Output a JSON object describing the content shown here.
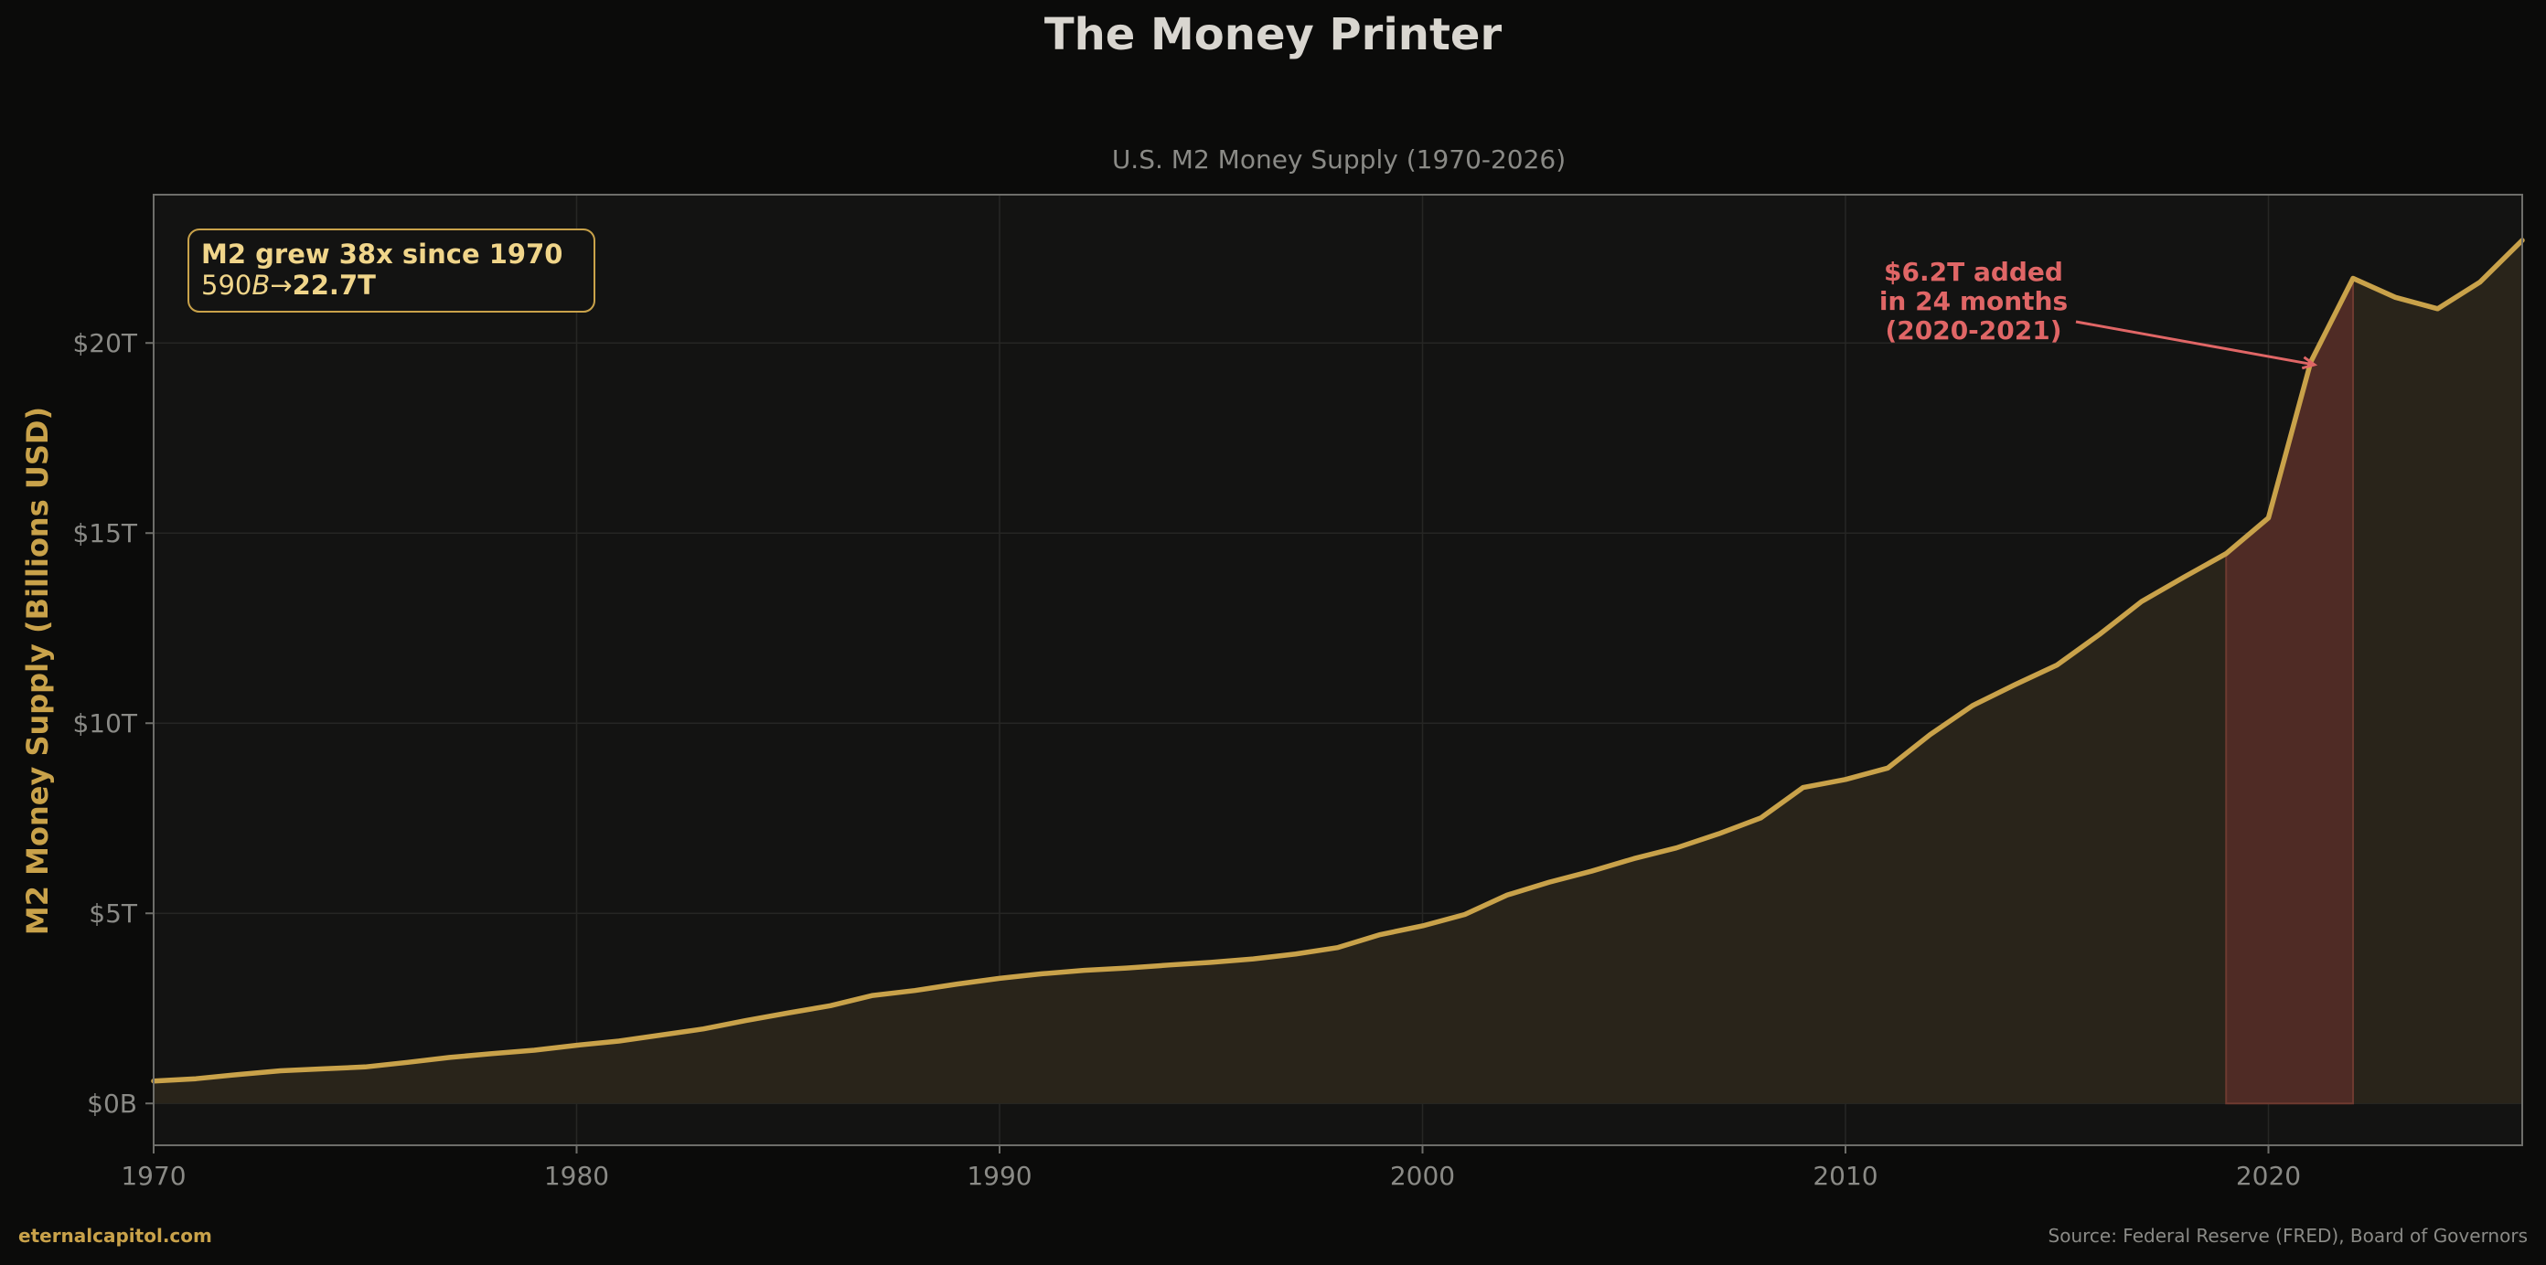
{
  "page": {
    "footer_left": "eternalcapitol.com",
    "footer_right": "Source: Federal Reserve (FRED), Board of Governors"
  },
  "colors": {
    "background": "#0b0b0a",
    "plot_background": "#131312",
    "line": "#c9a24a",
    "area_fill": "#29241a",
    "highlight_fill": "#4f2b25",
    "annotation": "#e06666",
    "text_muted": "#8a8a86",
    "title": "#d9d6d0"
  },
  "chart_data": {
    "type": "area",
    "title": "The Money Printer",
    "subtitle": "U.S. M2 Money Supply (1970-2026)",
    "ylabel": "M2 Money Supply (Billions USD)",
    "xlabel": "",
    "xlim": [
      1970,
      2026
    ],
    "ylim": [
      -1100,
      23900
    ],
    "grid": true,
    "x_ticks": [
      1970,
      1980,
      1990,
      2000,
      2010,
      2020
    ],
    "y_ticks": [
      0,
      5000,
      10000,
      15000,
      20000
    ],
    "y_tick_labels": [
      "$0B",
      "$5T",
      "$10T",
      "$15T",
      "$20T"
    ],
    "series": [
      {
        "x": [
          1970,
          1971,
          1972,
          1973,
          1974,
          1975,
          1976,
          1977,
          1978,
          1979,
          1980,
          1981,
          1982,
          1983,
          1984,
          1985,
          1986,
          1987,
          1988,
          1989,
          1990,
          1991,
          1992,
          1993,
          1994,
          1995,
          1996,
          1997,
          1998,
          1999,
          2000,
          2001,
          2002,
          2003,
          2004,
          2005,
          2006,
          2007,
          2008,
          2009,
          2010,
          2011,
          2012,
          2013,
          2014,
          2015,
          2016,
          2017,
          2018,
          2019,
          2020,
          2021,
          2022,
          2023,
          2024,
          2025,
          2026
        ],
        "values": [
          590,
          650,
          760,
          860,
          910,
          960,
          1080,
          1210,
          1310,
          1400,
          1530,
          1640,
          1800,
          1960,
          2180,
          2380,
          2570,
          2840,
          2970,
          3140,
          3290,
          3410,
          3500,
          3560,
          3640,
          3710,
          3800,
          3930,
          4100,
          4440,
          4670,
          4970,
          5480,
          5820,
          6110,
          6440,
          6720,
          7090,
          7510,
          8310,
          8520,
          8820,
          9700,
          10460,
          11010,
          11530,
          12330,
          13200,
          13840,
          14460,
          15400,
          19500,
          21700,
          21200,
          20900,
          21600,
          22700
        ]
      }
    ],
    "highlight": {
      "x_range": [
        2019,
        2022
      ],
      "label": "$6.2T added\nin 24 months\n(2020-2021)",
      "arrow_to": [
        2021,
        19500
      ]
    },
    "info_box": {
      "line1": "M2 grew 38x since 1970",
      "line2_prefix": "590",
      "line2_italic": "B",
      "line2_arrow": "→",
      "line2_bold": "22.7T"
    }
  }
}
